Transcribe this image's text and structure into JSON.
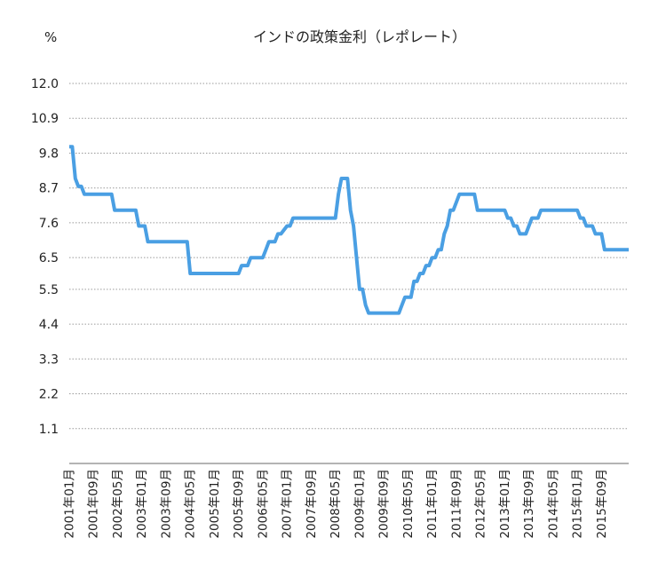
{
  "chart_data": {
    "type": "line",
    "title": "インドの政策金利（レポレート）",
    "ylabel": "%",
    "ylim": [
      0,
      12.0
    ],
    "yticks": [
      "12.0",
      "10.9",
      "9.8",
      "8.7",
      "7.6",
      "6.5",
      "5.5",
      "4.4",
      "3.3",
      "2.2",
      "1.1"
    ],
    "grid": true,
    "x_tick_labels": [
      "2001年01月",
      "2001年09月",
      "2002年05月",
      "2003年01月",
      "2003年09月",
      "2004年05月",
      "2005年01月",
      "2005年09月",
      "2006年05月",
      "2007年01月",
      "2007年09月",
      "2008年05月",
      "2009年01月",
      "2009年09月",
      "2010年05月",
      "2011年01月",
      "2011年09月",
      "2012年05月",
      "2013年01月",
      "2013年09月",
      "2014年05月",
      "2015年01月",
      "2015年09月"
    ],
    "series": [
      {
        "color": "#4a9fe3",
        "points": [
          [
            "2001-01",
            10.0
          ],
          [
            "2001-02",
            10.0
          ],
          [
            "2001-03",
            9.0
          ],
          [
            "2001-04",
            8.75
          ],
          [
            "2001-05",
            8.75
          ],
          [
            "2001-06",
            8.5
          ],
          [
            "2001-10",
            8.5
          ],
          [
            "2001-11",
            8.5
          ],
          [
            "2002-01",
            8.5
          ],
          [
            "2002-03",
            8.5
          ],
          [
            "2002-04",
            8.0
          ],
          [
            "2002-05",
            8.0
          ],
          [
            "2002-11",
            8.0
          ],
          [
            "2002-12",
            7.5
          ],
          [
            "2003-02",
            7.5
          ],
          [
            "2003-03",
            7.0
          ],
          [
            "2003-09",
            7.0
          ],
          [
            "2004-04",
            7.0
          ],
          [
            "2004-05",
            6.0
          ],
          [
            "2005-09",
            6.0
          ],
          [
            "2005-10",
            6.25
          ],
          [
            "2005-12",
            6.25
          ],
          [
            "2006-01",
            6.5
          ],
          [
            "2006-05",
            6.5
          ],
          [
            "2006-06",
            6.75
          ],
          [
            "2006-07",
            7.0
          ],
          [
            "2006-09",
            7.0
          ],
          [
            "2006-10",
            7.25
          ],
          [
            "2006-11",
            7.25
          ],
          [
            "2007-01",
            7.5
          ],
          [
            "2007-02",
            7.5
          ],
          [
            "2007-03",
            7.75
          ],
          [
            "2008-05",
            7.75
          ],
          [
            "2008-06",
            8.5
          ],
          [
            "2008-07",
            9.0
          ],
          [
            "2008-09",
            9.0
          ],
          [
            "2008-10",
            8.0
          ],
          [
            "2008-11",
            7.5
          ],
          [
            "2008-12",
            6.5
          ],
          [
            "2009-01",
            5.5
          ],
          [
            "2009-02",
            5.5
          ],
          [
            "2009-03",
            5.0
          ],
          [
            "2009-04",
            4.75
          ],
          [
            "2010-02",
            4.75
          ],
          [
            "2010-03",
            5.0
          ],
          [
            "2010-04",
            5.25
          ],
          [
            "2010-06",
            5.25
          ],
          [
            "2010-07",
            5.75
          ],
          [
            "2010-08",
            5.75
          ],
          [
            "2010-09",
            6.0
          ],
          [
            "2010-10",
            6.0
          ],
          [
            "2010-11",
            6.25
          ],
          [
            "2010-12",
            6.25
          ],
          [
            "2011-01",
            6.5
          ],
          [
            "2011-02",
            6.5
          ],
          [
            "2011-03",
            6.75
          ],
          [
            "2011-04",
            6.75
          ],
          [
            "2011-05",
            7.25
          ],
          [
            "2011-06",
            7.5
          ],
          [
            "2011-07",
            8.0
          ],
          [
            "2011-08",
            8.0
          ],
          [
            "2011-09",
            8.25
          ],
          [
            "2011-10",
            8.5
          ],
          [
            "2012-03",
            8.5
          ],
          [
            "2012-04",
            8.0
          ],
          [
            "2013-01",
            8.0
          ],
          [
            "2013-02",
            7.75
          ],
          [
            "2013-03",
            7.75
          ],
          [
            "2013-04",
            7.5
          ],
          [
            "2013-05",
            7.5
          ],
          [
            "2013-06",
            7.25
          ],
          [
            "2013-08",
            7.25
          ],
          [
            "2013-09",
            7.5
          ],
          [
            "2013-10",
            7.75
          ],
          [
            "2013-12",
            7.75
          ],
          [
            "2014-01",
            8.0
          ],
          [
            "2015-01",
            8.0
          ],
          [
            "2015-02",
            7.75
          ],
          [
            "2015-03",
            7.75
          ],
          [
            "2015-04",
            7.5
          ],
          [
            "2015-06",
            7.5
          ],
          [
            "2015-07",
            7.25
          ],
          [
            "2015-09",
            7.25
          ],
          [
            "2015-10",
            6.75
          ],
          [
            "2016-06",
            6.75
          ]
        ]
      }
    ]
  }
}
